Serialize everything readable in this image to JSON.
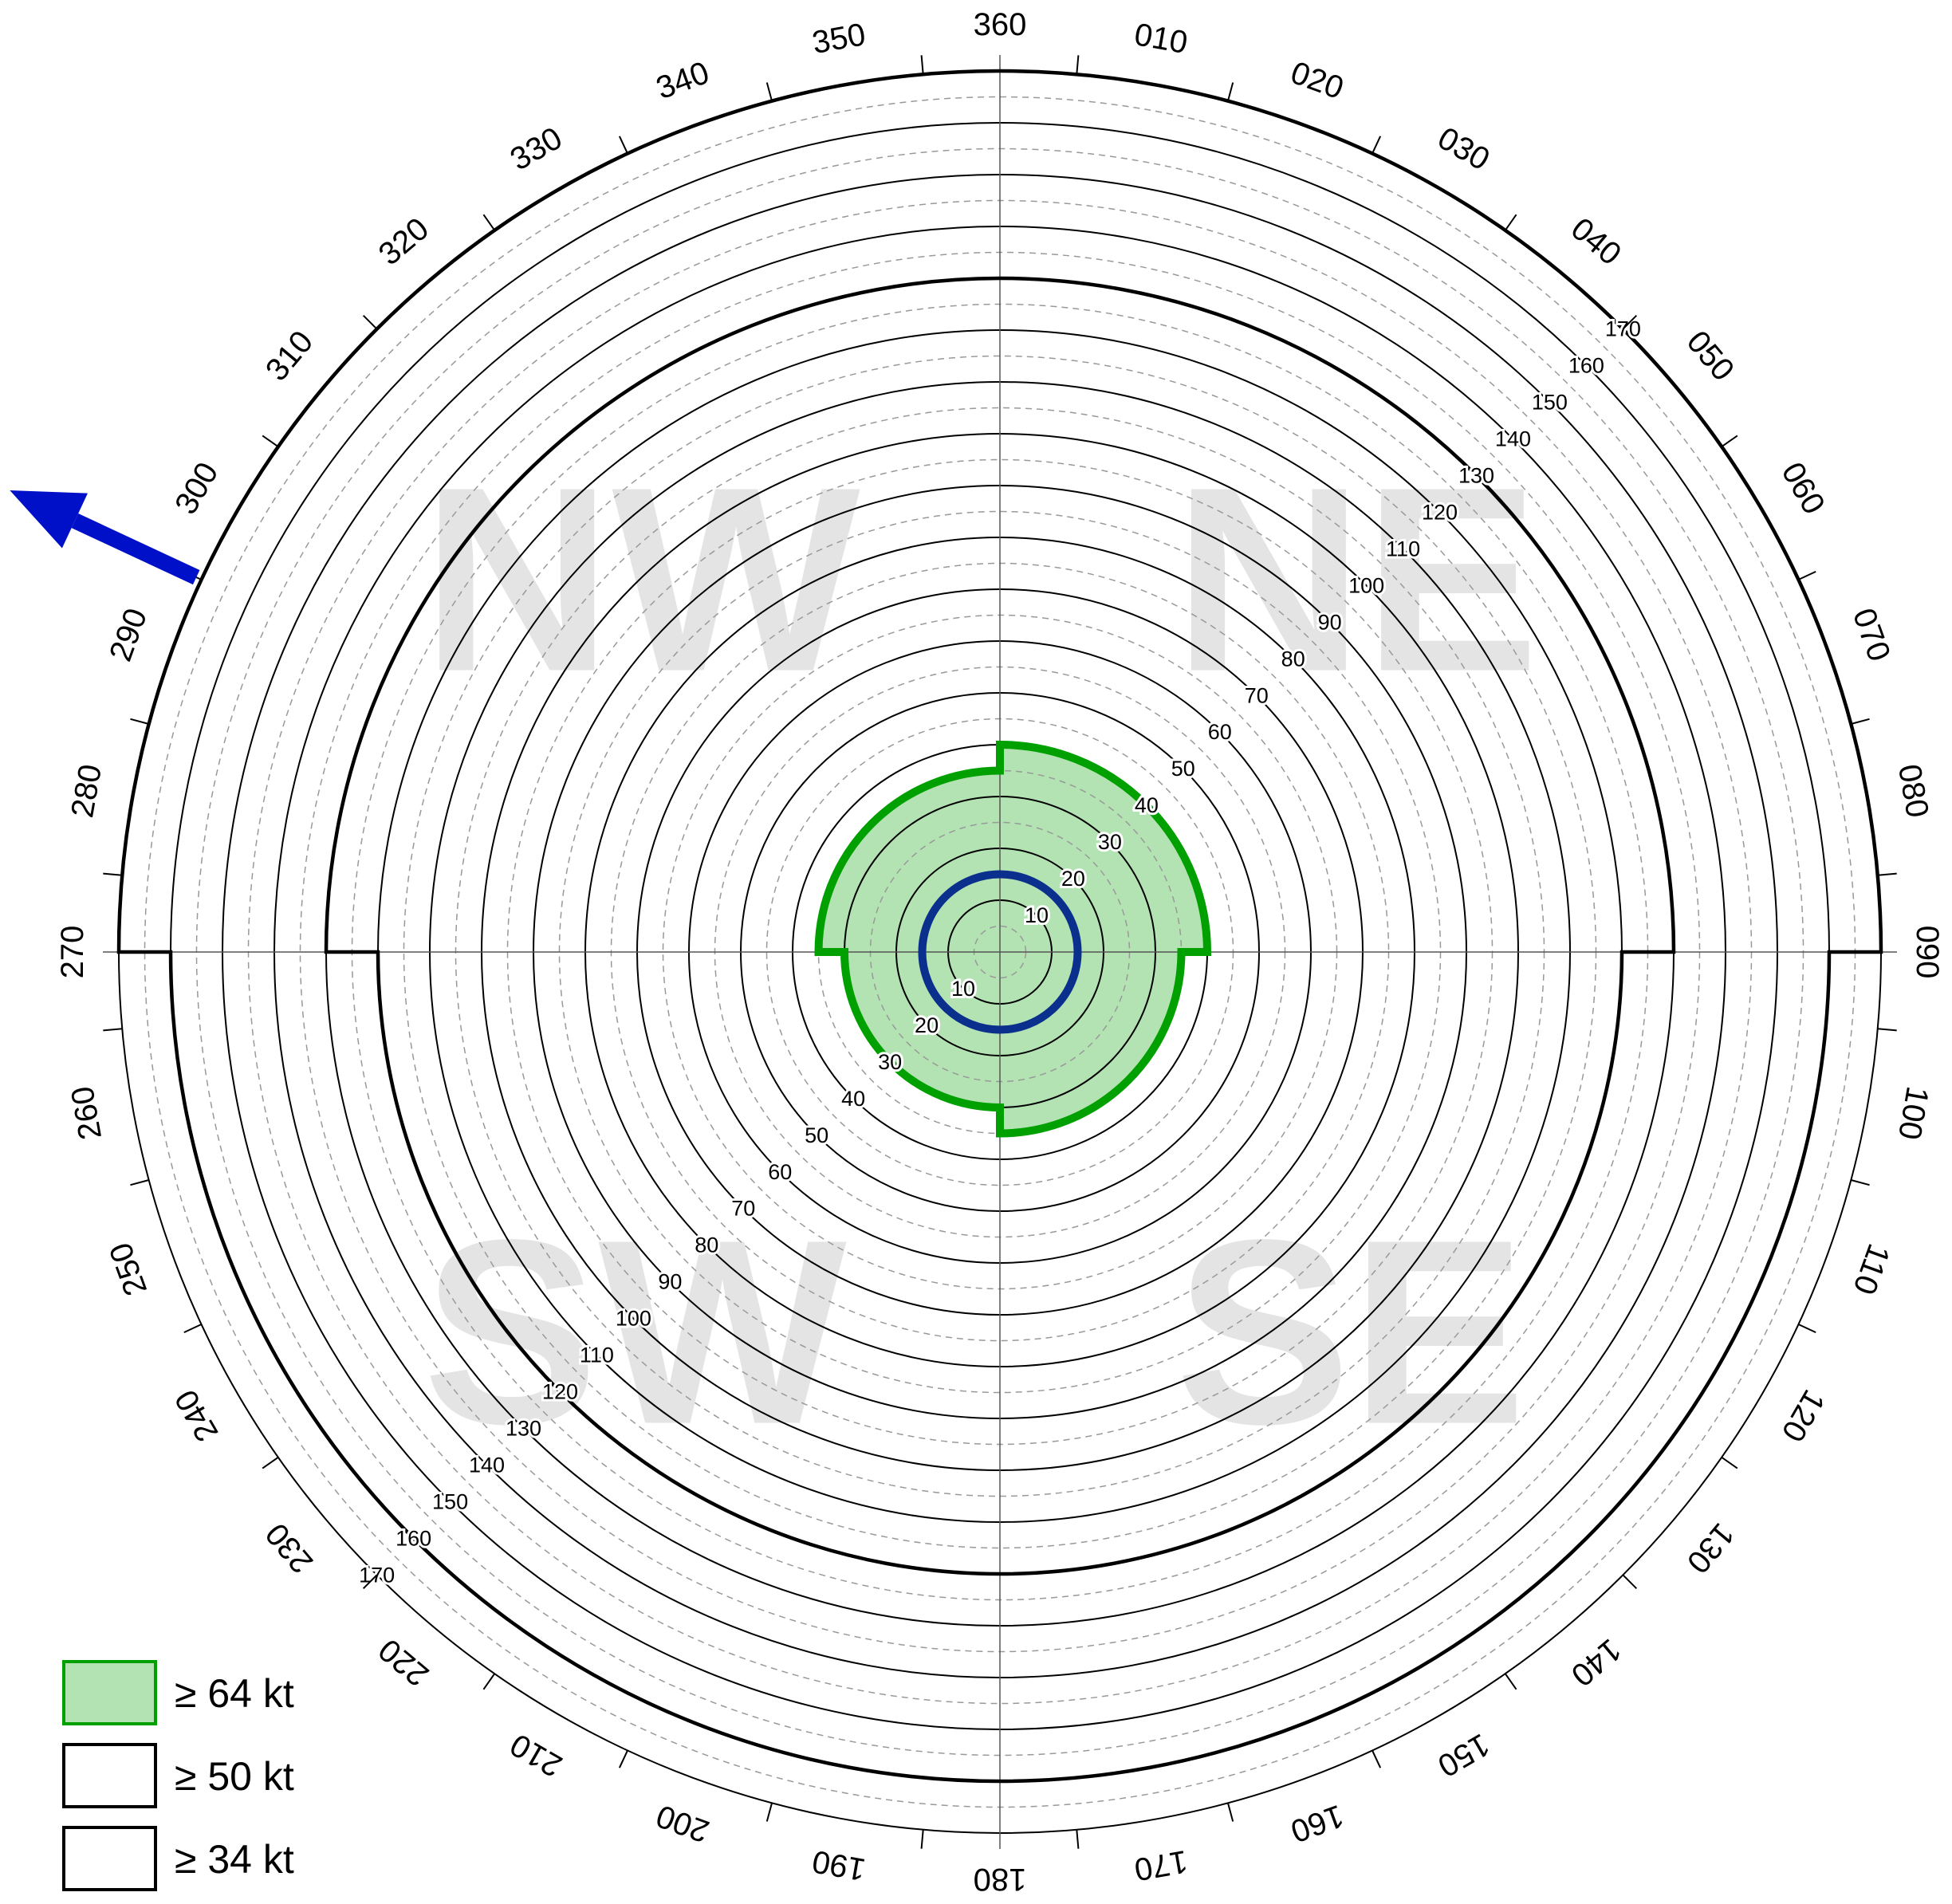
{
  "chart_data": {
    "type": "polar",
    "categories": [
      "NE",
      "SE",
      "SW",
      "NW"
    ],
    "rlim": [
      0,
      170
    ],
    "rticks": [
      10,
      20,
      30,
      40,
      50,
      60,
      70,
      80,
      90,
      100,
      110,
      120,
      130,
      140,
      150,
      160,
      170
    ],
    "rminor": [
      5,
      15,
      25,
      35,
      45,
      55,
      65,
      75,
      85,
      95,
      105,
      115,
      125,
      135,
      145,
      155,
      165
    ],
    "angle_ticks": [
      {
        "value": 0,
        "label": "360"
      },
      {
        "value": 10,
        "label": "010"
      },
      {
        "value": 20,
        "label": "020"
      },
      {
        "value": 30,
        "label": "030"
      },
      {
        "value": 40,
        "label": "040"
      },
      {
        "value": 50,
        "label": "050"
      },
      {
        "value": 60,
        "label": "060"
      },
      {
        "value": 70,
        "label": "070"
      },
      {
        "value": 80,
        "label": "080"
      },
      {
        "value": 90,
        "label": "090"
      },
      {
        "value": 100,
        "label": "100"
      },
      {
        "value": 110,
        "label": "110"
      },
      {
        "value": 120,
        "label": "120"
      },
      {
        "value": 130,
        "label": "130"
      },
      {
        "value": 140,
        "label": "140"
      },
      {
        "value": 150,
        "label": "150"
      },
      {
        "value": 160,
        "label": "160"
      },
      {
        "value": 170,
        "label": "170"
      },
      {
        "value": 180,
        "label": "180"
      },
      {
        "value": 190,
        "label": "190"
      },
      {
        "value": 200,
        "label": "200"
      },
      {
        "value": 210,
        "label": "210"
      },
      {
        "value": 220,
        "label": "220"
      },
      {
        "value": 230,
        "label": "230"
      },
      {
        "value": 240,
        "label": "240"
      },
      {
        "value": 250,
        "label": "250"
      },
      {
        "value": 260,
        "label": "260"
      },
      {
        "value": 270,
        "label": "270"
      },
      {
        "value": 280,
        "label": "280"
      },
      {
        "value": 290,
        "label": "290"
      },
      {
        "value": 300,
        "label": "300"
      },
      {
        "value": 310,
        "label": "310"
      },
      {
        "value": 320,
        "label": "320"
      },
      {
        "value": 330,
        "label": "330"
      },
      {
        "value": 340,
        "label": "340"
      },
      {
        "value": 350,
        "label": "350"
      }
    ],
    "series": [
      {
        "name": "≥ 64 kt",
        "color": "#00a000",
        "fill": "#b3e3b3",
        "values": [
          40,
          35,
          30,
          35
        ]
      },
      {
        "name": "≥ 50 kt",
        "color": "#000000",
        "fill": "none",
        "values": [
          130,
          120,
          120,
          130
        ]
      },
      {
        "name": "≥ 34 kt",
        "color": "#000000",
        "fill": "none",
        "values": [
          170,
          160,
          160,
          170
        ]
      }
    ],
    "rmw": 15,
    "rmw_color": "#0a2f8c",
    "motion_direction": 295,
    "motion_color": "#0010c8"
  }
}
